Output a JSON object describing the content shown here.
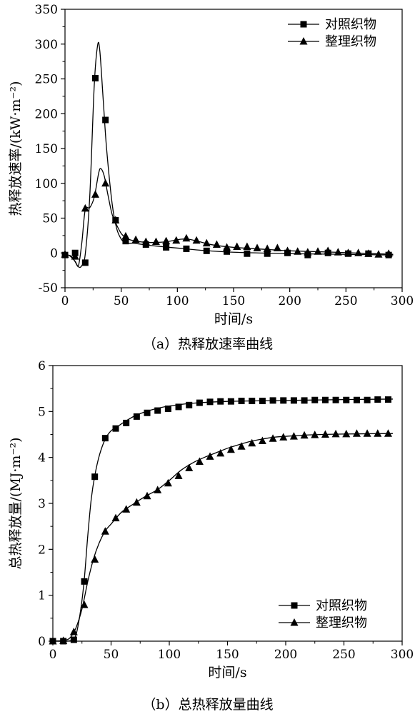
{
  "chart_data": [
    {
      "type": "line",
      "caption": "（a）热释放速率曲线",
      "xlabel": "时间/s",
      "ylabel": "热释放速率/(kW·m⁻²)",
      "xlim": [
        0,
        300
      ],
      "ylim": [
        -50,
        350
      ],
      "xticks": [
        0,
        50,
        100,
        150,
        200,
        250,
        300
      ],
      "yticks": [
        -50,
        0,
        50,
        100,
        150,
        200,
        250,
        300,
        350
      ],
      "grid": false,
      "legend_position": "top-right",
      "series": [
        {
          "name": "对照织物",
          "marker": "square",
          "curve": [
            [
              0,
              -3
            ],
            [
              5,
              -4
            ],
            [
              8,
              -10
            ],
            [
              12,
              -20
            ],
            [
              15,
              -18
            ],
            [
              18,
              -2
            ],
            [
              22,
              80
            ],
            [
              26,
              240
            ],
            [
              29,
              298
            ],
            [
              31,
              290
            ],
            [
              34,
              220
            ],
            [
              37,
              150
            ],
            [
              42,
              70
            ],
            [
              46,
              35
            ],
            [
              50,
              20
            ],
            [
              54,
              14
            ],
            [
              60,
              14
            ],
            [
              70,
              12
            ],
            [
              80,
              10
            ],
            [
              100,
              7
            ],
            [
              120,
              4
            ],
            [
              150,
              1
            ],
            [
              200,
              -1
            ],
            [
              250,
              -2
            ],
            [
              292,
              -3
            ]
          ],
          "markers": [
            [
              0,
              -3
            ],
            [
              9,
              0
            ],
            [
              18,
              -14
            ],
            [
              27,
              251
            ],
            [
              36,
              191
            ],
            [
              45,
              47
            ],
            [
              54,
              17
            ],
            [
              72,
              12
            ],
            [
              90,
              8
            ],
            [
              108,
              6
            ],
            [
              126,
              3
            ],
            [
              144,
              2
            ],
            [
              162,
              -1
            ],
            [
              180,
              -1
            ],
            [
              198,
              0
            ],
            [
              216,
              -3
            ],
            [
              234,
              0
            ],
            [
              252,
              -1
            ],
            [
              270,
              -1
            ],
            [
              288,
              -3
            ]
          ]
        },
        {
          "name": "整理织物",
          "marker": "triangle",
          "curve": [
            [
              0,
              -2
            ],
            [
              4,
              -4
            ],
            [
              9,
              -12
            ],
            [
              12,
              -18
            ],
            [
              15,
              15
            ],
            [
              18,
              62
            ],
            [
              22,
              65
            ],
            [
              26,
              80
            ],
            [
              30,
              115
            ],
            [
              32,
              121
            ],
            [
              35,
              110
            ],
            [
              38,
              85
            ],
            [
              42,
              55
            ],
            [
              46,
              40
            ],
            [
              50,
              28
            ],
            [
              54,
              22
            ],
            [
              60,
              18
            ],
            [
              75,
              15
            ],
            [
              90,
              16
            ],
            [
              108,
              20
            ],
            [
              130,
              12
            ],
            [
              150,
              8
            ],
            [
              180,
              5
            ],
            [
              200,
              3
            ],
            [
              240,
              1
            ],
            [
              292,
              -2
            ]
          ],
          "markers": [
            [
              0,
              -2
            ],
            [
              9,
              -5
            ],
            [
              18,
              64
            ],
            [
              27,
              84
            ],
            [
              36,
              100
            ],
            [
              45,
              47
            ],
            [
              54,
              24
            ],
            [
              63,
              19
            ],
            [
              72,
              16
            ],
            [
              81,
              16
            ],
            [
              90,
              17
            ],
            [
              99,
              18
            ],
            [
              108,
              21
            ],
            [
              117,
              18
            ],
            [
              126,
              14
            ],
            [
              135,
              12
            ],
            [
              144,
              8
            ],
            [
              153,
              9
            ],
            [
              162,
              9
            ],
            [
              171,
              7
            ],
            [
              180,
              6
            ],
            [
              189,
              7
            ],
            [
              198,
              3
            ],
            [
              207,
              2
            ],
            [
              216,
              1
            ],
            [
              225,
              2
            ],
            [
              234,
              3
            ],
            [
              243,
              1
            ],
            [
              252,
              0
            ],
            [
              261,
              0
            ],
            [
              270,
              -1
            ],
            [
              279,
              -2
            ],
            [
              288,
              -1
            ]
          ]
        }
      ]
    },
    {
      "type": "line",
      "caption": "（b）总热释放量曲线",
      "xlabel": "时间/s",
      "ylabel": "总热释放量/(MJ·m⁻²)",
      "xlim": [
        0,
        300
      ],
      "ylim": [
        0,
        6
      ],
      "xticks": [
        0,
        50,
        100,
        150,
        200,
        250,
        300
      ],
      "yticks": [
        0,
        1,
        2,
        3,
        4,
        5,
        6
      ],
      "grid": false,
      "legend_position": "bottom-right",
      "series": [
        {
          "name": "对照织物",
          "marker": "square",
          "curve": [
            [
              0,
              0
            ],
            [
              10,
              0
            ],
            [
              16,
              0.02
            ],
            [
              20,
              0.15
            ],
            [
              24,
              0.7
            ],
            [
              27,
              1.35
            ],
            [
              30,
              2.3
            ],
            [
              33,
              3.1
            ],
            [
              36,
              3.6
            ],
            [
              40,
              4.05
            ],
            [
              45,
              4.4
            ],
            [
              50,
              4.58
            ],
            [
              55,
              4.66
            ],
            [
              60,
              4.75
            ],
            [
              70,
              4.9
            ],
            [
              80,
              5.0
            ],
            [
              90,
              5.07
            ],
            [
              100,
              5.12
            ],
            [
              120,
              5.18
            ],
            [
              150,
              5.22
            ],
            [
              200,
              5.24
            ],
            [
              250,
              5.26
            ],
            [
              292,
              5.27
            ]
          ],
          "markers": [
            [
              0,
              0
            ],
            [
              9,
              0
            ],
            [
              18,
              0.03
            ],
            [
              27,
              1.3
            ],
            [
              36,
              3.58
            ],
            [
              45,
              4.42
            ],
            [
              54,
              4.63
            ],
            [
              63,
              4.75
            ],
            [
              72,
              4.89
            ],
            [
              81,
              4.97
            ],
            [
              90,
              5.02
            ],
            [
              99,
              5.06
            ],
            [
              108,
              5.1
            ],
            [
              117,
              5.14
            ],
            [
              126,
              5.19
            ],
            [
              135,
              5.21
            ],
            [
              144,
              5.22
            ],
            [
              153,
              5.22
            ],
            [
              162,
              5.23
            ],
            [
              171,
              5.23
            ],
            [
              180,
              5.23
            ],
            [
              189,
              5.24
            ],
            [
              198,
              5.24
            ],
            [
              207,
              5.24
            ],
            [
              216,
              5.24
            ],
            [
              225,
              5.25
            ],
            [
              234,
              5.25
            ],
            [
              243,
              5.25
            ],
            [
              252,
              5.25
            ],
            [
              261,
              5.25
            ],
            [
              270,
              5.25
            ],
            [
              279,
              5.26
            ],
            [
              288,
              5.26
            ]
          ]
        },
        {
          "name": "整理织物",
          "marker": "triangle",
          "curve": [
            [
              0,
              0
            ],
            [
              10,
              0.02
            ],
            [
              15,
              0.08
            ],
            [
              20,
              0.3
            ],
            [
              25,
              0.7
            ],
            [
              30,
              1.3
            ],
            [
              35,
              1.8
            ],
            [
              40,
              2.15
            ],
            [
              45,
              2.4
            ],
            [
              50,
              2.55
            ],
            [
              55,
              2.7
            ],
            [
              60,
              2.83
            ],
            [
              70,
              3.0
            ],
            [
              80,
              3.16
            ],
            [
              90,
              3.3
            ],
            [
              100,
              3.5
            ],
            [
              110,
              3.72
            ],
            [
              120,
              3.88
            ],
            [
              130,
              4.0
            ],
            [
              140,
              4.1
            ],
            [
              150,
              4.2
            ],
            [
              160,
              4.28
            ],
            [
              170,
              4.35
            ],
            [
              180,
              4.4
            ],
            [
              190,
              4.44
            ],
            [
              200,
              4.46
            ],
            [
              220,
              4.49
            ],
            [
              250,
              4.51
            ],
            [
              292,
              4.52
            ]
          ],
          "markers": [
            [
              0,
              0
            ],
            [
              9,
              0.01
            ],
            [
              18,
              0.2
            ],
            [
              27,
              0.79
            ],
            [
              36,
              1.78
            ],
            [
              45,
              2.39
            ],
            [
              54,
              2.68
            ],
            [
              63,
              2.87
            ],
            [
              72,
              3.02
            ],
            [
              81,
              3.16
            ],
            [
              90,
              3.29
            ],
            [
              99,
              3.44
            ],
            [
              108,
              3.6
            ],
            [
              117,
              3.77
            ],
            [
              126,
              3.91
            ],
            [
              135,
              4.02
            ],
            [
              144,
              4.09
            ],
            [
              153,
              4.17
            ],
            [
              162,
              4.24
            ],
            [
              171,
              4.31
            ],
            [
              180,
              4.36
            ],
            [
              189,
              4.41
            ],
            [
              198,
              4.44
            ],
            [
              207,
              4.46
            ],
            [
              216,
              4.48
            ],
            [
              225,
              4.49
            ],
            [
              234,
              4.5
            ],
            [
              243,
              4.51
            ],
            [
              252,
              4.51
            ],
            [
              261,
              4.52
            ],
            [
              270,
              4.52
            ],
            [
              279,
              4.52
            ],
            [
              288,
              4.52
            ]
          ]
        }
      ]
    }
  ]
}
